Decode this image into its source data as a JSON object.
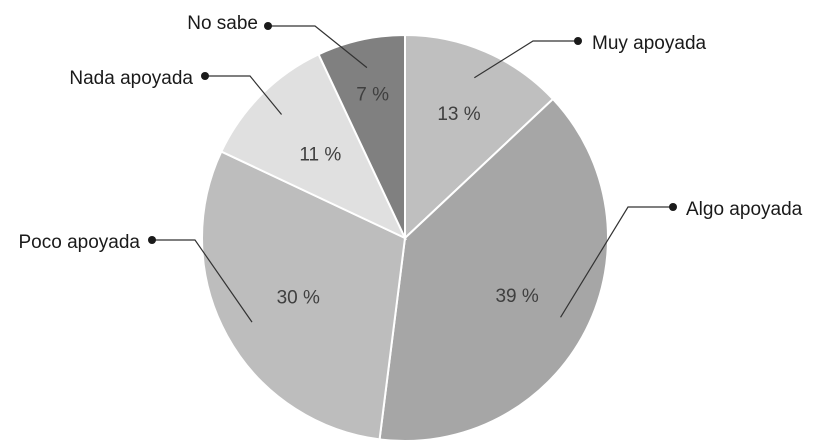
{
  "chart_data": {
    "type": "pie",
    "title": "",
    "slices": [
      {
        "label": "Muy apoyada",
        "value": 13,
        "value_label": "13 %",
        "color": "#bfbfbf"
      },
      {
        "label": "Algo apoyada",
        "value": 39,
        "value_label": "39 %",
        "color": "#a6a6a6"
      },
      {
        "label": "Poco apoyada",
        "value": 30,
        "value_label": "30 %",
        "color": "#bdbdbd"
      },
      {
        "label": "Nada apoyada",
        "value": 11,
        "value_label": "11 %",
        "color": "#e0e0e0"
      },
      {
        "label": "No sabe",
        "value": 7,
        "value_label": "7 %",
        "color": "#808080"
      }
    ],
    "start": "12 o'clock",
    "direction": "clockwise",
    "legend": "none"
  }
}
